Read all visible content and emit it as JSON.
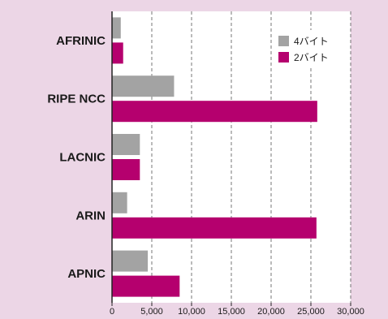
{
  "chart_data": {
    "type": "bar",
    "orientation": "horizontal",
    "categories": [
      "AFRINIC",
      "RIPE NCC",
      "LACNIC",
      "ARIN",
      "APNIC"
    ],
    "series": [
      {
        "name": "4バイト",
        "color": "#a3a3a3",
        "values": [
          1100,
          7800,
          3500,
          1900,
          4500
        ]
      },
      {
        "name": "2バイト",
        "color": "#b5006e",
        "values": [
          1400,
          25800,
          3500,
          25700,
          8500
        ]
      }
    ],
    "xlim": [
      0,
      30000
    ],
    "xticks": [
      0,
      5000,
      10000,
      15000,
      20000,
      25000,
      30000
    ],
    "xtick_labels": [
      "0",
      "5,000",
      "10,000",
      "15,000",
      "20,000",
      "25,000",
      "30,000"
    ],
    "grid": "vertical-dashed",
    "legend_position": "top-right",
    "title": "",
    "xlabel": "",
    "ylabel": ""
  }
}
